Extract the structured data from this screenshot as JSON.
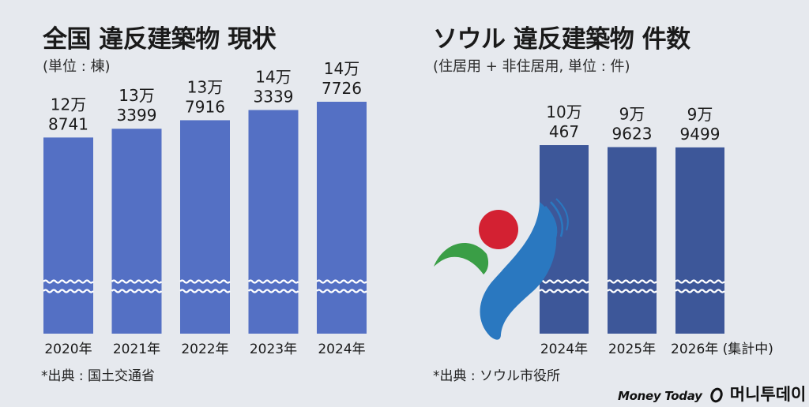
{
  "colors": {
    "background": "#e6e9ee",
    "bar_left": "#5470c4",
    "bar_right": "#3d5799",
    "wave": "#ffffff",
    "emblem_red": "#d32132",
    "emblem_green": "#3a9e46",
    "emblem_blue": "#2a78c0"
  },
  "left_panel": {
    "title": "全国 違反建築物 現状",
    "subtitle": "(単位 : 棟)",
    "source": "*出典 : 国土交通省"
  },
  "right_panel": {
    "title": "ソウル 違反建築物 件数",
    "subtitle": "(住居用 + 非住居用, 単位 : 件)",
    "source": "*出典 : ソウル市役所"
  },
  "brand": {
    "name_en": "Money Today",
    "name_kr": "머니투데이",
    "logo_icon": "money-today-logo-icon"
  },
  "emblem_icon": "seoul-emblem-icon",
  "chart_data": [
    {
      "type": "bar",
      "categories": [
        "2020年",
        "2021年",
        "2022年",
        "2023年",
        "2024年"
      ],
      "values": [
        128741,
        133399,
        137916,
        143339,
        147726
      ],
      "data_labels": [
        [
          "12万",
          "8741"
        ],
        [
          "13万",
          "3399"
        ],
        [
          "13万",
          "7916"
        ],
        [
          "14万",
          "3339"
        ],
        [
          "14万",
          "7726"
        ]
      ],
      "axis_break": true
    },
    {
      "type": "bar",
      "categories": [
        "2024年",
        "2025年",
        "2026年 (集計中)"
      ],
      "values": [
        100467,
        99623,
        99499
      ],
      "data_labels": [
        [
          "10万",
          "467"
        ],
        [
          "9万",
          "9623"
        ],
        [
          "9万",
          "9499"
        ]
      ],
      "axis_break": true
    }
  ]
}
